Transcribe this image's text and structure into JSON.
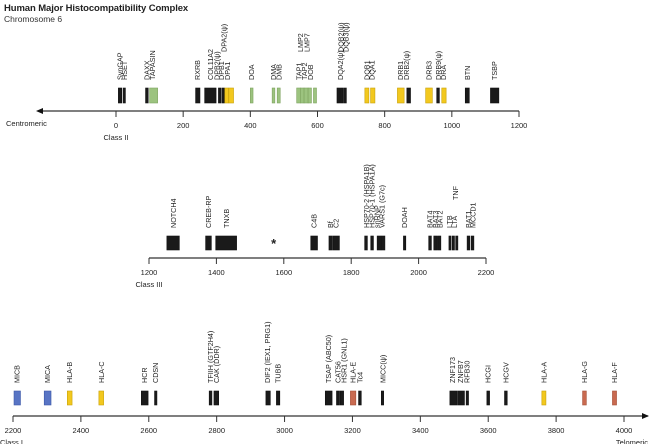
{
  "title": "Human Major Histocompatibility Complex",
  "subtitle": "Chromosome 6",
  "units": "kb",
  "colors": {
    "black": "#1a1a1a",
    "green": "#9cc37f",
    "yellow": "#f2c81e",
    "blue": "#5874c4",
    "red": "#c96a50",
    "axis": "#333333"
  },
  "rows": [
    {
      "id": "class-ii",
      "region_label": "Class II",
      "end_label_left": "Centromeric",
      "end_label_right": "",
      "arrow": "left",
      "range": [
        0,
        1200
      ],
      "ticks": [
        0,
        200,
        400,
        600,
        800,
        1000,
        1200
      ],
      "genes": [
        {
          "start": 7,
          "end": 17,
          "color": "black"
        },
        {
          "start": 21,
          "end": 28,
          "color": "black"
        },
        {
          "start": 88,
          "end": 96,
          "color": "black"
        },
        {
          "start": 100,
          "end": 124,
          "color": "green"
        },
        {
          "start": 237,
          "end": 250,
          "color": "black"
        },
        {
          "start": 264,
          "end": 298,
          "color": "black"
        },
        {
          "start": 305,
          "end": 313,
          "color": "black"
        },
        {
          "start": 316,
          "end": 322,
          "color": "black"
        },
        {
          "start": 324,
          "end": 335,
          "color": "yellow"
        },
        {
          "start": 336,
          "end": 350,
          "color": "yellow"
        },
        {
          "start": 400,
          "end": 408,
          "color": "green"
        },
        {
          "start": 465,
          "end": 473,
          "color": "green"
        },
        {
          "start": 480,
          "end": 489,
          "color": "green"
        },
        {
          "start": 538,
          "end": 549,
          "color": "green"
        },
        {
          "start": 549,
          "end": 560,
          "color": "green"
        },
        {
          "start": 560,
          "end": 572,
          "color": "green"
        },
        {
          "start": 572,
          "end": 582,
          "color": "green"
        },
        {
          "start": 588,
          "end": 597,
          "color": "green"
        },
        {
          "start": 658,
          "end": 666,
          "color": "black"
        },
        {
          "start": 668,
          "end": 676,
          "color": "black"
        },
        {
          "start": 678,
          "end": 686,
          "color": "black"
        },
        {
          "start": 741,
          "end": 753,
          "color": "yellow"
        },
        {
          "start": 758,
          "end": 771,
          "color": "yellow"
        },
        {
          "start": 838,
          "end": 858,
          "color": "yellow"
        },
        {
          "start": 866,
          "end": 877,
          "color": "black"
        },
        {
          "start": 922,
          "end": 942,
          "color": "yellow"
        },
        {
          "start": 955,
          "end": 963,
          "color": "black"
        },
        {
          "start": 970,
          "end": 983,
          "color": "yellow"
        },
        {
          "start": 1040,
          "end": 1052,
          "color": "black"
        },
        {
          "start": 1115,
          "end": 1140,
          "color": "black"
        }
      ],
      "labels": [
        {
          "pos": 12,
          "lines": [
            "SynGAP"
          ]
        },
        {
          "pos": 25,
          "lines": [
            "HSET"
          ]
        },
        {
          "pos": 93,
          "lines": [
            "DAXX"
          ]
        },
        {
          "pos": 108,
          "lines": [
            "TAPASIN"
          ]
        },
        {
          "pos": 243,
          "lines": [
            "RXRB"
          ]
        },
        {
          "pos": 281,
          "lines": [
            "COL11A2"
          ]
        },
        {
          "pos": 300,
          "lines": [
            "DPB2(ψ)"
          ]
        },
        {
          "pos": 314,
          "lines": [
            "DPB1"
          ]
        },
        {
          "pos": 322,
          "lines": [
            "DPA2(ψ)"
          ],
          "high": true
        },
        {
          "pos": 332,
          "lines": [
            "DPA1"
          ]
        },
        {
          "pos": 404,
          "lines": [
            "DOA"
          ]
        },
        {
          "pos": 469,
          "lines": [
            "DMA"
          ]
        },
        {
          "pos": 485,
          "lines": [
            "DMB"
          ]
        },
        {
          "pos": 545,
          "lines": [
            "TAP1"
          ]
        },
        {
          "pos": 550,
          "lines": [
            "LMP2"
          ],
          "high": true
        },
        {
          "pos": 561,
          "lines": [
            "TAP2"
          ]
        },
        {
          "pos": 568,
          "lines": [
            "LMP7"
          ],
          "high": true
        },
        {
          "pos": 579,
          "lines": [
            "DOB"
          ]
        },
        {
          "pos": 668,
          "lines": [
            "DQA2(ψ)"
          ]
        },
        {
          "pos": 670,
          "lines": [
            "DQB2(ψ)"
          ],
          "high": true
        },
        {
          "pos": 685,
          "lines": [
            "DQB3(ψ)"
          ],
          "high": true
        },
        {
          "pos": 747,
          "lines": [
            "DQB1"
          ]
        },
        {
          "pos": 763,
          "lines": [
            "DQA1"
          ]
        },
        {
          "pos": 847,
          "lines": [
            "DRB1"
          ]
        },
        {
          "pos": 865,
          "lines": [
            "DRB2(ψ)"
          ]
        },
        {
          "pos": 932,
          "lines": [
            "DRB3"
          ]
        },
        {
          "pos": 960,
          "lines": [
            "DRB9(ψ)"
          ]
        },
        {
          "pos": 975,
          "lines": [
            "DRA"
          ]
        },
        {
          "pos": 1046,
          "lines": [
            "BTN"
          ]
        },
        {
          "pos": 1127,
          "lines": [
            "TSBP"
          ]
        }
      ]
    },
    {
      "id": "class-iii",
      "region_label": "Class III",
      "end_label_left": "",
      "end_label_right": "",
      "arrow": "none",
      "range": [
        1200,
        2200
      ],
      "ticks": [
        1200,
        1400,
        1600,
        1800,
        2000,
        2200
      ],
      "star": {
        "pos": 1570,
        "text": "*"
      },
      "genes": [
        {
          "start": 1253,
          "end": 1290,
          "color": "black"
        },
        {
          "start": 1368,
          "end": 1385,
          "color": "black"
        },
        {
          "start": 1398,
          "end": 1460,
          "color": "black"
        },
        {
          "start": 1680,
          "end": 1700,
          "color": "black"
        },
        {
          "start": 1734,
          "end": 1744,
          "color": "black"
        },
        {
          "start": 1746,
          "end": 1765,
          "color": "black"
        },
        {
          "start": 1840,
          "end": 1848,
          "color": "black"
        },
        {
          "start": 1858,
          "end": 1866,
          "color": "black"
        },
        {
          "start": 1877,
          "end": 1888,
          "color": "black"
        },
        {
          "start": 1889,
          "end": 1900,
          "color": "black"
        },
        {
          "start": 1955,
          "end": 1962,
          "color": "black"
        },
        {
          "start": 2030,
          "end": 2038,
          "color": "black"
        },
        {
          "start": 2045,
          "end": 2055,
          "color": "black"
        },
        {
          "start": 2057,
          "end": 2066,
          "color": "black"
        },
        {
          "start": 2090,
          "end": 2096,
          "color": "black"
        },
        {
          "start": 2100,
          "end": 2106,
          "color": "black"
        },
        {
          "start": 2110,
          "end": 2116,
          "color": "black"
        },
        {
          "start": 2144,
          "end": 2152,
          "color": "black"
        },
        {
          "start": 2156,
          "end": 2164,
          "color": "black"
        }
      ],
      "labels": [
        {
          "pos": 1272,
          "lines": [
            "NOTCH4"
          ]
        },
        {
          "pos": 1377,
          "lines": [
            "CREB-RP"
          ]
        },
        {
          "pos": 1430,
          "lines": [
            "TNXB"
          ]
        },
        {
          "pos": 1690,
          "lines": [
            "C4B"
          ]
        },
        {
          "pos": 1739,
          "lines": [
            "Bf"
          ]
        },
        {
          "pos": 1755,
          "lines": [
            "C2"
          ]
        },
        {
          "pos": 1845,
          "lines": [
            "HSP70-2 (HSPA1B)"
          ]
        },
        {
          "pos": 1862,
          "lines": [
            "HSP70-1 (HSPA1A)"
          ]
        },
        {
          "pos": 1876,
          "lines": [
            "snRNP"
          ]
        },
        {
          "pos": 1892,
          "lines": [
            "VARS1 (G7c)"
          ]
        },
        {
          "pos": 1958,
          "lines": [
            "DOAH"
          ]
        },
        {
          "pos": 2034,
          "lines": [
            "BAT4"
          ]
        },
        {
          "pos": 2050,
          "lines": [
            "BAT3"
          ]
        },
        {
          "pos": 2063,
          "lines": [
            "BAT2"
          ]
        },
        {
          "pos": 2092,
          "lines": [
            "LTB"
          ]
        },
        {
          "pos": 2106,
          "lines": [
            "LTA"
          ]
        },
        {
          "pos": 2110,
          "lines": [
            "TNF"
          ],
          "high": true
        },
        {
          "pos": 2148,
          "lines": [
            "BAT1"
          ]
        },
        {
          "pos": 2162,
          "lines": [
            "MCCD1"
          ]
        }
      ]
    },
    {
      "id": "class-i",
      "region_label": "Class I",
      "end_label_left": "",
      "end_label_right": "Telomeric",
      "arrow": "right",
      "range": [
        2200,
        4000
      ],
      "ticks": [
        2200,
        2400,
        2600,
        2800,
        3000,
        3200,
        3400,
        3600,
        3800,
        4000
      ],
      "genes": [
        {
          "start": 2203,
          "end": 2222,
          "color": "blue"
        },
        {
          "start": 2292,
          "end": 2312,
          "color": "blue"
        },
        {
          "start": 2360,
          "end": 2374,
          "color": "yellow"
        },
        {
          "start": 2453,
          "end": 2467,
          "color": "yellow"
        },
        {
          "start": 2578,
          "end": 2598,
          "color": "black"
        },
        {
          "start": 2617,
          "end": 2624,
          "color": "black"
        },
        {
          "start": 2778,
          "end": 2786,
          "color": "black"
        },
        {
          "start": 2792,
          "end": 2806,
          "color": "black"
        },
        {
          "start": 2945,
          "end": 2958,
          "color": "black"
        },
        {
          "start": 2976,
          "end": 2986,
          "color": "black"
        },
        {
          "start": 3120,
          "end": 3140,
          "color": "black"
        },
        {
          "start": 3153,
          "end": 3162,
          "color": "black"
        },
        {
          "start": 3164,
          "end": 3174,
          "color": "black"
        },
        {
          "start": 3194,
          "end": 3210,
          "color": "red"
        },
        {
          "start": 3218,
          "end": 3226,
          "color": "black"
        },
        {
          "start": 3285,
          "end": 3292,
          "color": "black"
        },
        {
          "start": 3487,
          "end": 3508,
          "color": "black"
        },
        {
          "start": 3510,
          "end": 3530,
          "color": "black"
        },
        {
          "start": 3535,
          "end": 3542,
          "color": "black"
        },
        {
          "start": 3596,
          "end": 3604,
          "color": "black"
        },
        {
          "start": 3648,
          "end": 3656,
          "color": "black"
        },
        {
          "start": 3758,
          "end": 3770,
          "color": "yellow"
        },
        {
          "start": 3878,
          "end": 3889,
          "color": "red"
        },
        {
          "start": 3966,
          "end": 3978,
          "color": "red"
        }
      ],
      "labels": [
        {
          "pos": 2212,
          "lines": [
            "MICB"
          ]
        },
        {
          "pos": 2302,
          "lines": [
            "MICA"
          ]
        },
        {
          "pos": 2367,
          "lines": [
            "HLA-B"
          ]
        },
        {
          "pos": 2460,
          "lines": [
            "HLA-C"
          ]
        },
        {
          "pos": 2588,
          "lines": [
            "HCR"
          ]
        },
        {
          "pos": 2620,
          "lines": [
            "CDSN"
          ]
        },
        {
          "pos": 2782,
          "lines": [
            "TFIIH (GTF2H4)"
          ]
        },
        {
          "pos": 2800,
          "lines": [
            "CAK (DDR)"
          ]
        },
        {
          "pos": 2950,
          "lines": [
            "DIF2 (IEX1, PRG1)"
          ]
        },
        {
          "pos": 2980,
          "lines": [
            "TUBB"
          ]
        },
        {
          "pos": 3130,
          "lines": [
            "TSAP (ABC50)"
          ]
        },
        {
          "pos": 3158,
          "lines": [
            "CAT56"
          ]
        },
        {
          "pos": 3175,
          "lines": [
            "HSR1 (GNL1)"
          ]
        },
        {
          "pos": 3202,
          "lines": [
            "HLA-E"
          ]
        },
        {
          "pos": 3222,
          "lines": [
            "Tc4"
          ]
        },
        {
          "pos": 3290,
          "lines": [
            "MICC(ψ)"
          ]
        },
        {
          "pos": 3495,
          "lines": [
            "ZNF173"
          ]
        },
        {
          "pos": 3518,
          "lines": [
            "ZNFB7"
          ]
        },
        {
          "pos": 3538,
          "lines": [
            "RFB30"
          ]
        },
        {
          "pos": 3600,
          "lines": [
            "HCGI"
          ]
        },
        {
          "pos": 3652,
          "lines": [
            "HCGV"
          ]
        },
        {
          "pos": 3764,
          "lines": [
            "HLA-A"
          ]
        },
        {
          "pos": 3884,
          "lines": [
            "HLA-G"
          ]
        },
        {
          "pos": 3972,
          "lines": [
            "HLA-F"
          ]
        }
      ]
    }
  ]
}
